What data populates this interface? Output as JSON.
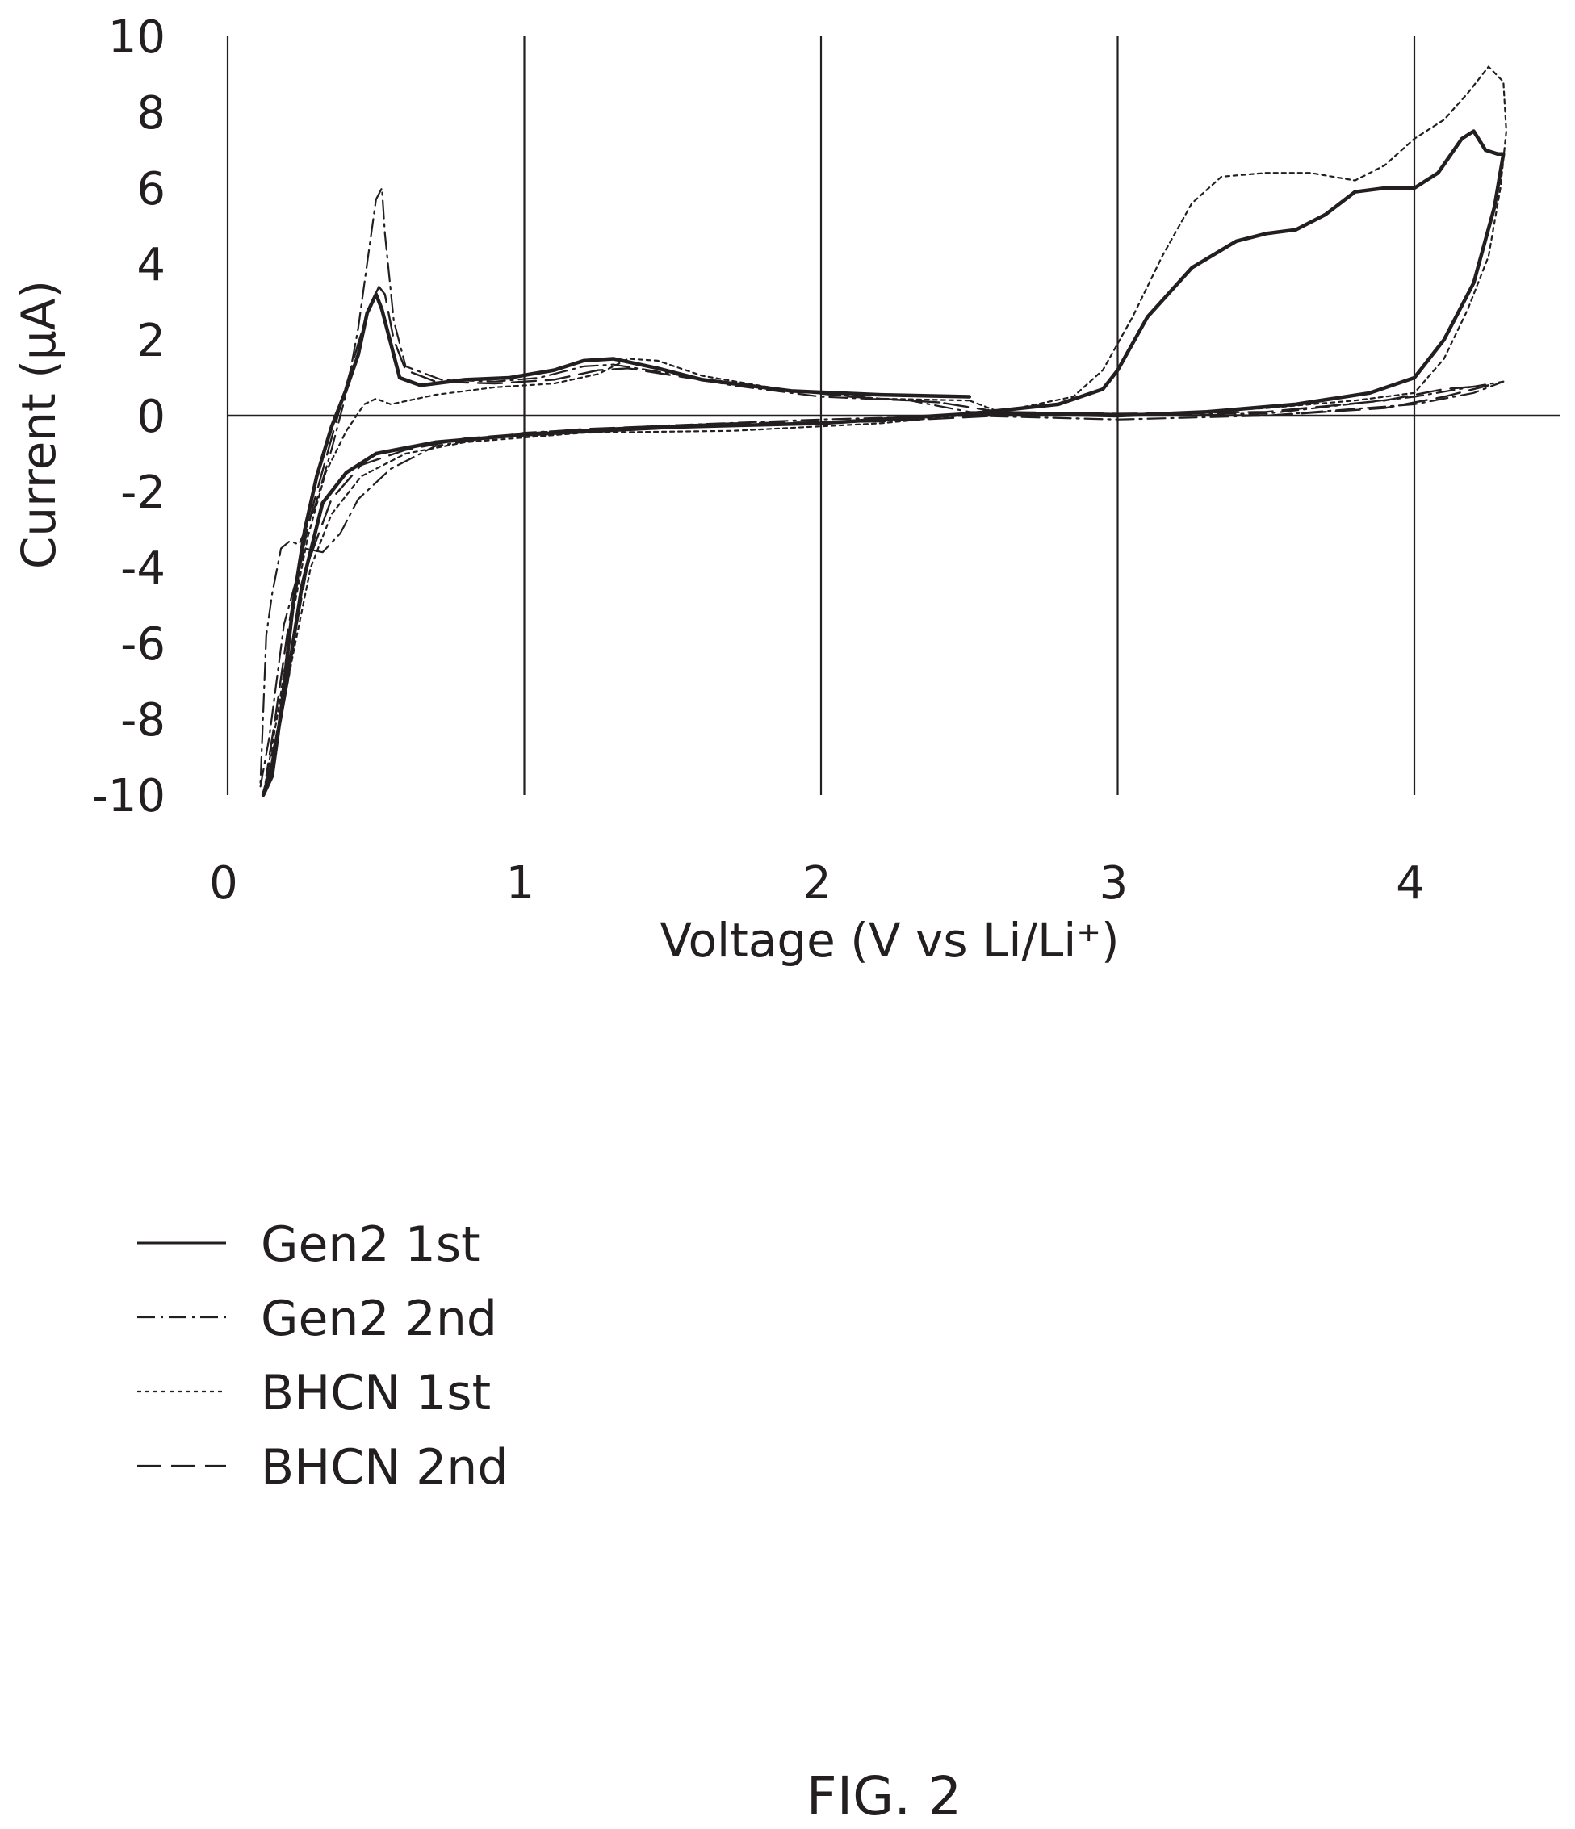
{
  "chart_data": {
    "type": "line",
    "title": "",
    "xlabel": "Voltage (V vs Li/Li⁺)",
    "ylabel": "Current (μA)",
    "xlim": [
      0,
      4.5
    ],
    "ylim": [
      -10,
      10
    ],
    "x_ticks": [
      "0",
      "1",
      "2",
      "3",
      "4"
    ],
    "y_ticks": [
      "10",
      "8",
      "6",
      "4",
      "2",
      "0",
      "-2",
      "-4",
      "-6",
      "-8",
      "-10"
    ],
    "grid": "vertical gridlines at each x tick",
    "legend_position": "below plot, left",
    "series": [
      {
        "name": "Gen2 1st",
        "style": "solid",
        "color": "#231f20",
        "points": [
          [
            2.5,
            0.5
          ],
          [
            2.2,
            0.55
          ],
          [
            1.9,
            0.65
          ],
          [
            1.6,
            0.95
          ],
          [
            1.45,
            1.25
          ],
          [
            1.3,
            1.5
          ],
          [
            1.2,
            1.45
          ],
          [
            1.1,
            1.2
          ],
          [
            0.95,
            1.0
          ],
          [
            0.8,
            0.95
          ],
          [
            0.65,
            0.8
          ],
          [
            0.58,
            1.0
          ],
          [
            0.55,
            1.9
          ],
          [
            0.52,
            2.8
          ],
          [
            0.5,
            3.2
          ],
          [
            0.47,
            2.7
          ],
          [
            0.44,
            1.6
          ],
          [
            0.4,
            0.7
          ],
          [
            0.35,
            -0.3
          ],
          [
            0.3,
            -1.6
          ],
          [
            0.26,
            -3.0
          ],
          [
            0.22,
            -5.0
          ],
          [
            0.18,
            -7.8
          ],
          [
            0.15,
            -9.5
          ],
          [
            0.12,
            -10.0
          ],
          [
            0.15,
            -9.2
          ],
          [
            0.2,
            -7.0
          ],
          [
            0.25,
            -4.5
          ],
          [
            0.32,
            -2.3
          ],
          [
            0.4,
            -1.5
          ],
          [
            0.5,
            -1.0
          ],
          [
            0.7,
            -0.7
          ],
          [
            1.0,
            -0.5
          ],
          [
            1.5,
            -0.3
          ],
          [
            2.0,
            -0.2
          ],
          [
            2.5,
            0.05
          ],
          [
            2.8,
            0.3
          ],
          [
            2.95,
            0.7
          ],
          [
            3.0,
            1.2
          ],
          [
            3.1,
            2.6
          ],
          [
            3.25,
            3.9
          ],
          [
            3.4,
            4.6
          ],
          [
            3.5,
            4.8
          ],
          [
            3.6,
            4.9
          ],
          [
            3.7,
            5.3
          ],
          [
            3.8,
            5.9
          ],
          [
            3.9,
            6.0
          ],
          [
            4.0,
            6.0
          ],
          [
            4.08,
            6.4
          ],
          [
            4.16,
            7.3
          ],
          [
            4.2,
            7.5
          ],
          [
            4.24,
            7.0
          ],
          [
            4.28,
            6.9
          ],
          [
            4.3,
            6.9
          ],
          [
            4.27,
            5.5
          ],
          [
            4.2,
            3.5
          ],
          [
            4.1,
            2.0
          ],
          [
            4.0,
            1.0
          ],
          [
            3.85,
            0.6
          ],
          [
            3.6,
            0.3
          ],
          [
            3.3,
            0.1
          ],
          [
            3.0,
            0.0
          ],
          [
            2.7,
            0.05
          ],
          [
            2.5,
            0.05
          ]
        ]
      },
      {
        "name": "Gen2 2nd",
        "style": "dash-dot",
        "color": "#231f20",
        "points": [
          [
            2.3,
            0.4
          ],
          [
            2.0,
            0.5
          ],
          [
            1.7,
            0.8
          ],
          [
            1.5,
            1.1
          ],
          [
            1.3,
            1.35
          ],
          [
            1.2,
            1.3
          ],
          [
            1.05,
            1.0
          ],
          [
            0.9,
            0.9
          ],
          [
            0.72,
            0.95
          ],
          [
            0.6,
            1.3
          ],
          [
            0.56,
            2.5
          ],
          [
            0.53,
            4.8
          ],
          [
            0.52,
            6.0
          ],
          [
            0.5,
            5.7
          ],
          [
            0.47,
            4.0
          ],
          [
            0.44,
            2.3
          ],
          [
            0.4,
            0.6
          ],
          [
            0.35,
            -0.9
          ],
          [
            0.29,
            -2.5
          ],
          [
            0.24,
            -3.4
          ],
          [
            0.21,
            -3.3
          ],
          [
            0.18,
            -3.5
          ],
          [
            0.15,
            -4.7
          ],
          [
            0.13,
            -5.8
          ],
          [
            0.11,
            -9.8
          ],
          [
            0.14,
            -8.5
          ],
          [
            0.19,
            -5.5
          ],
          [
            0.26,
            -3.5
          ],
          [
            0.32,
            -3.6
          ],
          [
            0.38,
            -3.1
          ],
          [
            0.44,
            -2.2
          ],
          [
            0.55,
            -1.4
          ],
          [
            0.7,
            -0.8
          ],
          [
            1.0,
            -0.45
          ],
          [
            1.5,
            -0.25
          ],
          [
            2.0,
            -0.1
          ],
          [
            2.5,
            0.0
          ],
          [
            3.0,
            -0.1
          ],
          [
            3.5,
            0.0
          ],
          [
            4.0,
            0.3
          ],
          [
            4.2,
            0.6
          ],
          [
            4.3,
            0.9
          ],
          [
            4.15,
            0.7
          ],
          [
            4.0,
            0.5
          ],
          [
            3.5,
            0.05
          ],
          [
            3.0,
            0.05
          ],
          [
            2.5,
            0.1
          ],
          [
            2.3,
            0.4
          ]
        ]
      },
      {
        "name": "BHCN 1st",
        "style": "dotted",
        "color": "#231f20",
        "points": [
          [
            2.5,
            0.4
          ],
          [
            2.2,
            0.45
          ],
          [
            1.9,
            0.65
          ],
          [
            1.6,
            1.05
          ],
          [
            1.45,
            1.45
          ],
          [
            1.35,
            1.5
          ],
          [
            1.25,
            1.1
          ],
          [
            1.1,
            0.85
          ],
          [
            0.9,
            0.75
          ],
          [
            0.7,
            0.55
          ],
          [
            0.55,
            0.3
          ],
          [
            0.5,
            0.45
          ],
          [
            0.46,
            0.3
          ],
          [
            0.4,
            -0.4
          ],
          [
            0.33,
            -1.5
          ],
          [
            0.27,
            -3.2
          ],
          [
            0.22,
            -5.2
          ],
          [
            0.17,
            -7.8
          ],
          [
            0.12,
            -10.0
          ],
          [
            0.16,
            -8.8
          ],
          [
            0.22,
            -6.3
          ],
          [
            0.28,
            -4.0
          ],
          [
            0.35,
            -2.6
          ],
          [
            0.45,
            -1.6
          ],
          [
            0.6,
            -1.0
          ],
          [
            0.8,
            -0.7
          ],
          [
            1.2,
            -0.45
          ],
          [
            1.7,
            -0.4
          ],
          [
            2.2,
            -0.2
          ],
          [
            2.6,
            0.1
          ],
          [
            2.85,
            0.5
          ],
          [
            2.95,
            1.2
          ],
          [
            3.05,
            2.6
          ],
          [
            3.15,
            4.2
          ],
          [
            3.25,
            5.6
          ],
          [
            3.35,
            6.3
          ],
          [
            3.5,
            6.4
          ],
          [
            3.65,
            6.4
          ],
          [
            3.8,
            6.2
          ],
          [
            3.9,
            6.6
          ],
          [
            4.0,
            7.3
          ],
          [
            4.1,
            7.8
          ],
          [
            4.18,
            8.5
          ],
          [
            4.25,
            9.2
          ],
          [
            4.3,
            8.8
          ],
          [
            4.31,
            7.5
          ],
          [
            4.29,
            6.0
          ],
          [
            4.25,
            4.2
          ],
          [
            4.18,
            2.8
          ],
          [
            4.1,
            1.5
          ],
          [
            4.0,
            0.6
          ],
          [
            3.8,
            0.4
          ],
          [
            3.5,
            0.2
          ],
          [
            3.0,
            0.0
          ],
          [
            2.6,
            0.1
          ],
          [
            2.5,
            0.4
          ]
        ]
      },
      {
        "name": "BHCN 2nd",
        "style": "long-dash",
        "color": "#231f20",
        "points": [
          [
            2.4,
            0.35
          ],
          [
            2.1,
            0.5
          ],
          [
            1.8,
            0.75
          ],
          [
            1.55,
            1.0
          ],
          [
            1.35,
            1.25
          ],
          [
            1.25,
            1.2
          ],
          [
            1.1,
            0.95
          ],
          [
            0.9,
            0.85
          ],
          [
            0.7,
            0.9
          ],
          [
            0.6,
            1.2
          ],
          [
            0.56,
            2.0
          ],
          [
            0.53,
            3.2
          ],
          [
            0.51,
            3.4
          ],
          [
            0.48,
            2.9
          ],
          [
            0.44,
            1.9
          ],
          [
            0.4,
            0.8
          ],
          [
            0.35,
            -0.6
          ],
          [
            0.29,
            -2.3
          ],
          [
            0.24,
            -4.0
          ],
          [
            0.2,
            -5.8
          ],
          [
            0.16,
            -8.0
          ],
          [
            0.13,
            -9.5
          ],
          [
            0.16,
            -8.6
          ],
          [
            0.21,
            -6.5
          ],
          [
            0.27,
            -3.9
          ],
          [
            0.35,
            -2.2
          ],
          [
            0.45,
            -1.3
          ],
          [
            0.6,
            -0.9
          ],
          [
            0.8,
            -0.6
          ],
          [
            1.2,
            -0.35
          ],
          [
            1.7,
            -0.2
          ],
          [
            2.2,
            -0.15
          ],
          [
            2.6,
            0.0
          ],
          [
            3.0,
            0.05
          ],
          [
            3.5,
            0.0
          ],
          [
            3.9,
            0.2
          ],
          [
            4.1,
            0.5
          ],
          [
            4.25,
            0.8
          ],
          [
            4.1,
            0.7
          ],
          [
            3.9,
            0.4
          ],
          [
            3.5,
            0.1
          ],
          [
            3.0,
            0.05
          ],
          [
            2.6,
            0.1
          ],
          [
            2.4,
            0.35
          ]
        ]
      }
    ]
  },
  "caption": "FIG. 2"
}
